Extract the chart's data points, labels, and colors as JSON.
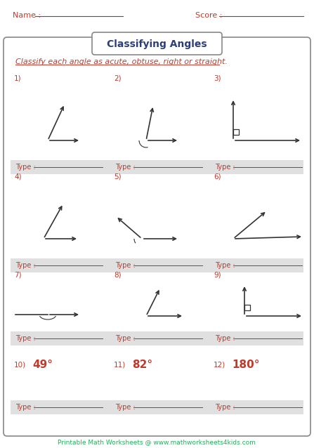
{
  "title": "Classifying Angles",
  "name_label": "Name :",
  "score_label": "Score :",
  "instruction": "Classify each angle as acute, obtuse, right or straight.",
  "footer": "Printable Math Worksheets @ www.mathworksheets4kids.com",
  "title_color": "#2c3e7a",
  "instruction_color": "#c0392b",
  "label_color": "#c0392b",
  "number_color": "#c0392b",
  "footer_color": "#27ae60",
  "type_label_color": "#c0392b",
  "bg_color": "#ffffff",
  "row_bg": "#e0e0e0",
  "degree_items": [
    {
      "num": "10)",
      "value": "49°",
      "color": "#c0392b"
    },
    {
      "num": "11)",
      "value": "82°",
      "color": "#c0392b"
    },
    {
      "num": "12)",
      "value": "180°",
      "color": "#c0392b"
    }
  ]
}
